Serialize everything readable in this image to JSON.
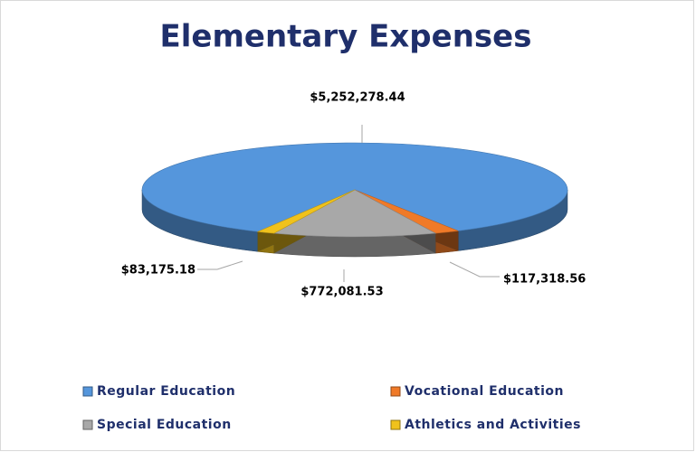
{
  "chart_data": {
    "type": "pie",
    "title": "Elementary Expenses",
    "categories": [
      "Regular Education",
      "Vocational Education",
      "Special Education",
      "Athletics and Activities"
    ],
    "values": [
      5252278.44,
      117318.56,
      772081.53,
      83175.18
    ],
    "value_labels": [
      "$5,252,278.44",
      "$117,318.56",
      "$772,081.53",
      "$83,175.18"
    ],
    "colors": [
      "#5596dc",
      "#f07a28",
      "#a8a8a8",
      "#f0c21c"
    ],
    "legend": "bottom"
  }
}
